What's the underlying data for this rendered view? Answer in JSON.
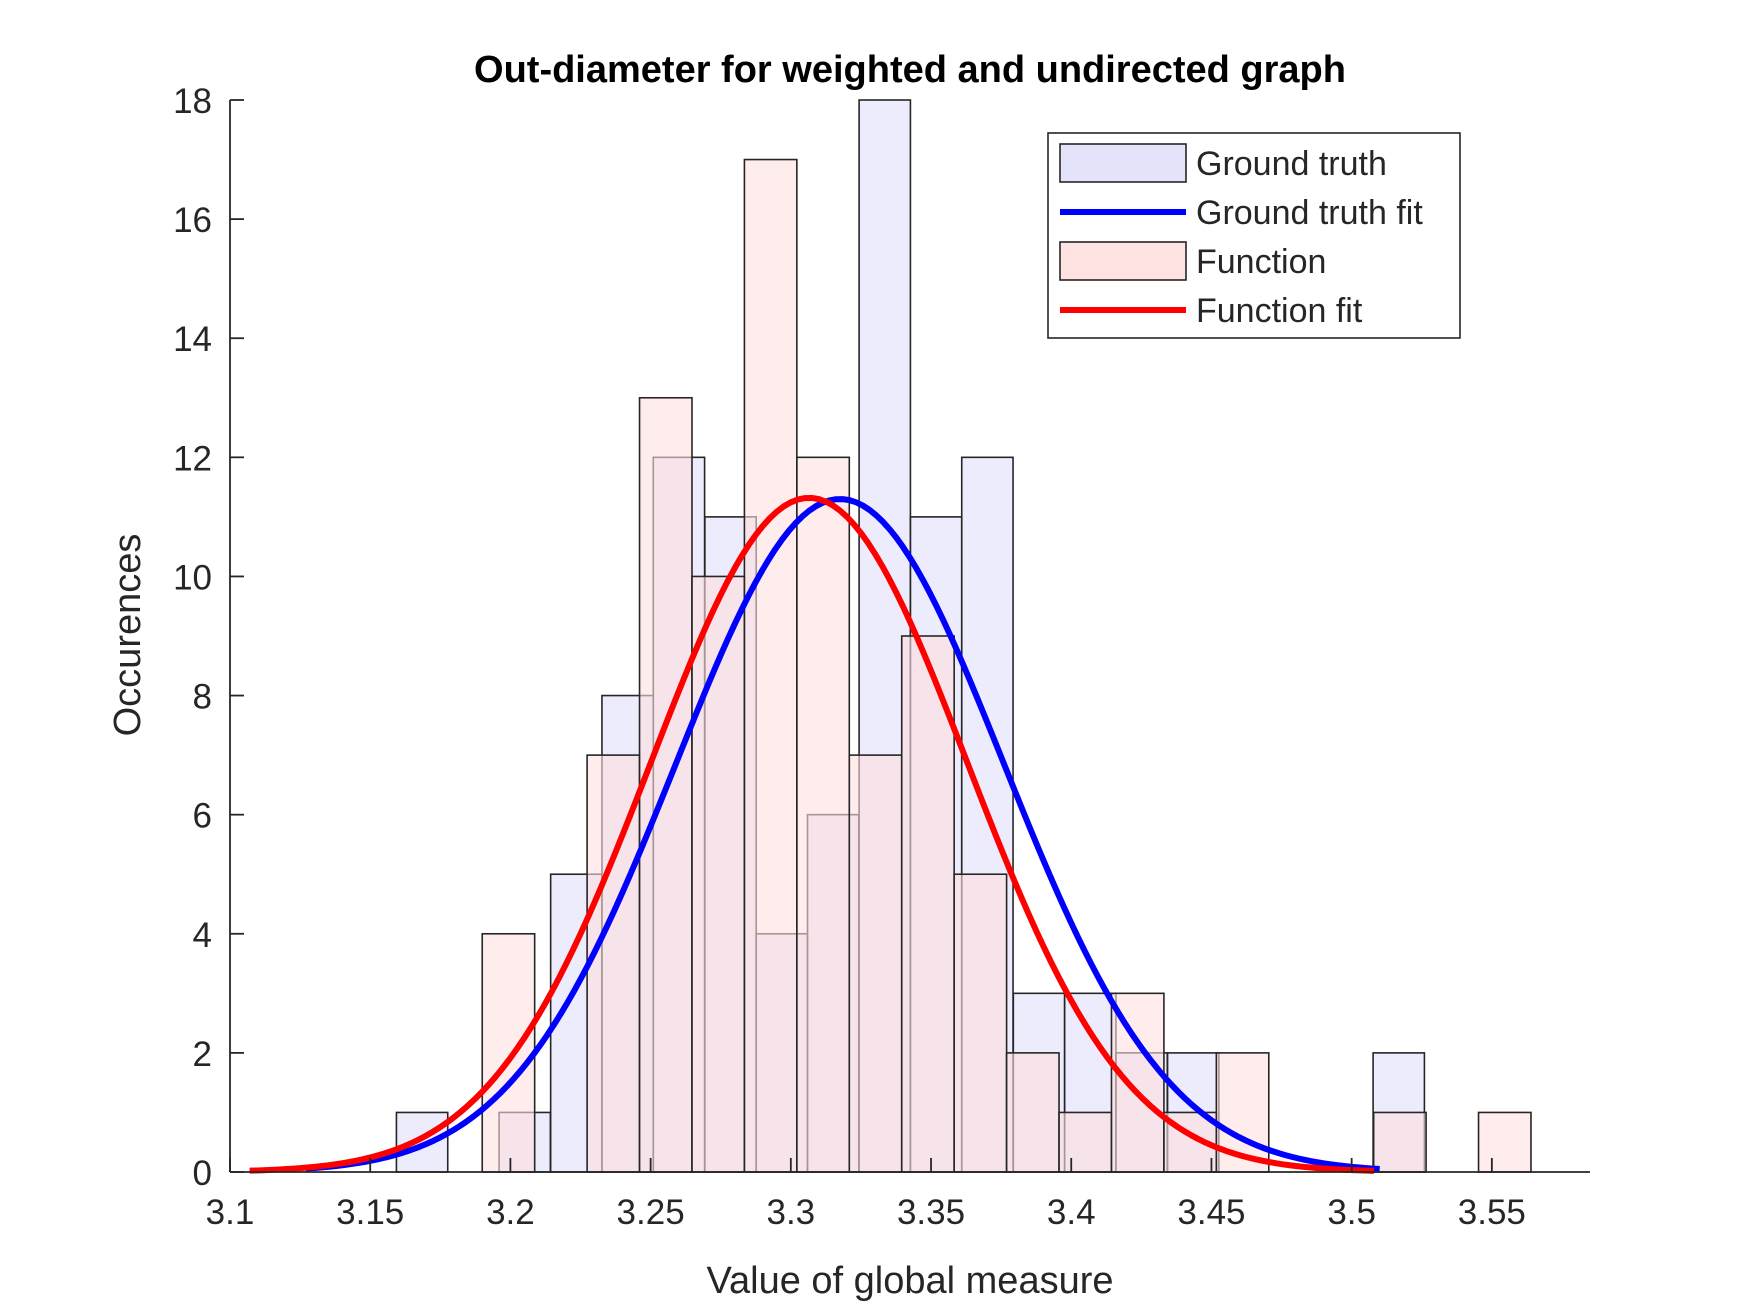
{
  "chart_data": {
    "type": "bar",
    "title": "Out-diameter for weighted and undirected graph",
    "xlabel": "Value of global measure",
    "ylabel": "Occurences",
    "xlim": [
      3.1,
      3.585
    ],
    "ylim": [
      0,
      18
    ],
    "xticks": [
      "3.1",
      "3.15",
      "3.2",
      "3.25",
      "3.3",
      "3.35",
      "3.4",
      "3.45",
      "3.5",
      "3.55"
    ],
    "yticks": [
      "0",
      "2",
      "4",
      "6",
      "8",
      "10",
      "12",
      "14",
      "16",
      "18"
    ],
    "legend_position": "top-right",
    "series": [
      {
        "name": "Ground truth",
        "kind": "histogram",
        "color": "#E0E0FA",
        "bin_width": 0.0183,
        "bin_centers": [
          3.1685,
          3.2051,
          3.2235,
          3.2418,
          3.2601,
          3.2785,
          3.2968,
          3.3151,
          3.3335,
          3.3518,
          3.3701,
          3.3885,
          3.4068,
          3.4251,
          3.4435,
          3.5168
        ],
        "values": [
          1,
          1,
          5,
          8,
          12,
          11,
          4,
          6,
          18,
          11,
          12,
          3,
          3,
          2,
          2,
          2
        ]
      },
      {
        "name": "Ground truth fit",
        "kind": "line",
        "color": "#0000FF",
        "x_range": [
          3.127,
          3.51
        ],
        "mu": 3.3175,
        "sigma": 0.0585,
        "peak": 11.3
      },
      {
        "name": "Function",
        "kind": "histogram",
        "color": "#FFE0E0",
        "bin_width": 0.0187,
        "bin_centers": [
          3.1993,
          3.2367,
          3.2554,
          3.2741,
          3.2928,
          3.3115,
          3.3302,
          3.3489,
          3.3676,
          3.3863,
          3.405,
          3.4237,
          3.4424,
          3.4611,
          3.5172,
          3.5546
        ],
        "values": [
          4,
          7,
          13,
          10,
          17,
          12,
          7,
          9,
          5,
          2,
          1,
          3,
          1,
          2,
          1,
          1
        ]
      },
      {
        "name": "Function fit",
        "kind": "line",
        "color": "#FF0000",
        "x_range": [
          3.107,
          3.508
        ],
        "mu": 3.3065,
        "sigma": 0.0565,
        "peak": 11.32
      }
    ]
  }
}
